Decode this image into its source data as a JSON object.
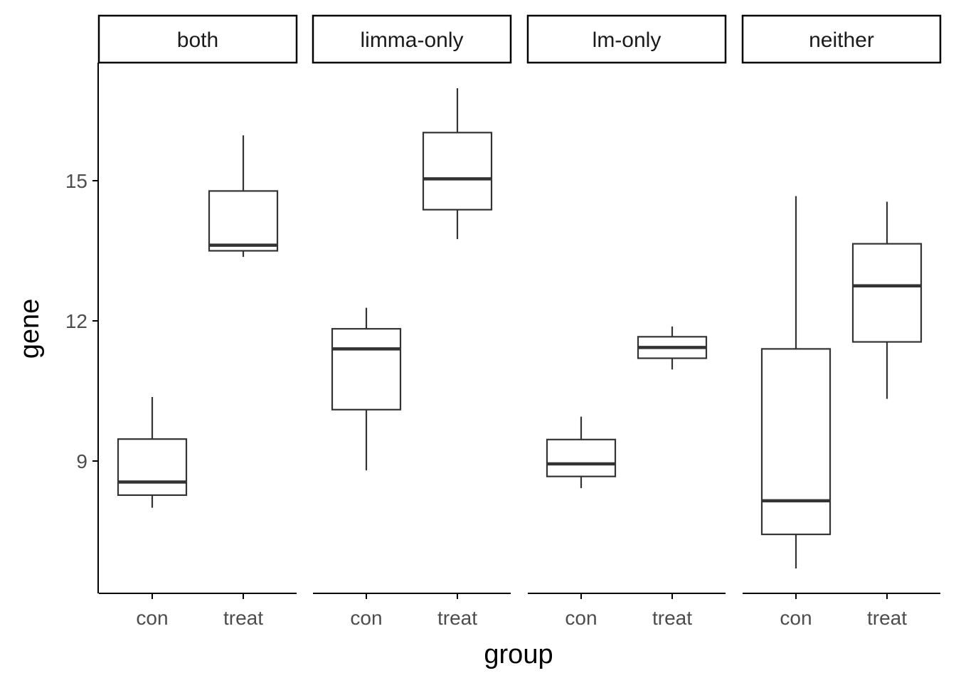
{
  "chart_data": {
    "type": "boxplot",
    "xlabel": "group",
    "ylabel": "gene",
    "ylim": [
      6.3,
      17.6
    ],
    "yticks": [
      9,
      12,
      15
    ],
    "categories": [
      "con",
      "treat"
    ],
    "facets": [
      {
        "label": "both",
        "boxes": [
          {
            "group": "con",
            "min": 8.0,
            "q1": 8.27,
            "median": 8.55,
            "q3": 9.47,
            "max": 10.37
          },
          {
            "group": "treat",
            "min": 13.37,
            "q1": 13.5,
            "median": 13.62,
            "q3": 14.78,
            "max": 15.97
          }
        ]
      },
      {
        "label": "limma-only",
        "boxes": [
          {
            "group": "con",
            "min": 8.8,
            "q1": 10.1,
            "median": 11.4,
            "q3": 11.83,
            "max": 12.28
          },
          {
            "group": "treat",
            "min": 13.75,
            "q1": 14.38,
            "median": 15.04,
            "q3": 16.03,
            "max": 16.98
          }
        ]
      },
      {
        "label": "lm-only",
        "boxes": [
          {
            "group": "con",
            "min": 8.42,
            "q1": 8.67,
            "median": 8.94,
            "q3": 9.46,
            "max": 9.95
          },
          {
            "group": "treat",
            "min": 10.96,
            "q1": 11.2,
            "median": 11.43,
            "q3": 11.66,
            "max": 11.88
          }
        ]
      },
      {
        "label": "neither",
        "boxes": [
          {
            "group": "con",
            "min": 6.7,
            "q1": 7.43,
            "median": 8.15,
            "q3": 11.4,
            "max": 14.67
          },
          {
            "group": "treat",
            "min": 10.33,
            "q1": 11.55,
            "median": 12.75,
            "q3": 13.65,
            "max": 14.55
          }
        ]
      }
    ]
  },
  "colors": {
    "box_stroke": "#333333",
    "axis": "#000000",
    "tick_text": "#4d4d4d",
    "strip_fill": "#ffffff",
    "strip_border": "#000000"
  }
}
